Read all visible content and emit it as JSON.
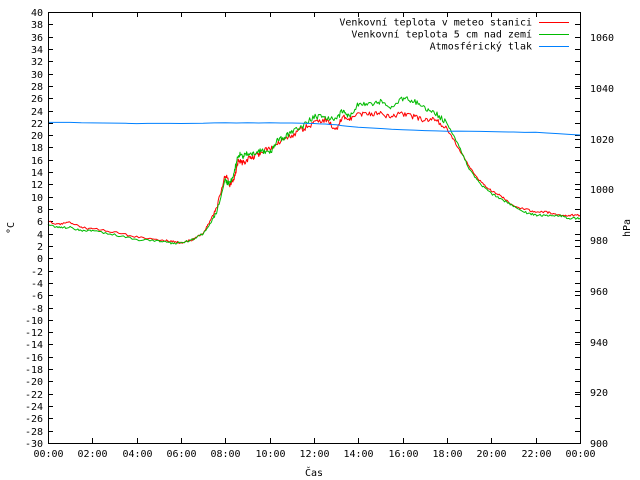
{
  "chart_data": {
    "type": "line",
    "xlabel": "Čas",
    "ylabel": "°C",
    "y2label": "hPa",
    "xticks": [
      "00:00",
      "02:00",
      "04:00",
      "06:00",
      "08:00",
      "10:00",
      "12:00",
      "14:00",
      "16:00",
      "18:00",
      "20:00",
      "22:00",
      "00:00"
    ],
    "xlim": [
      0,
      24
    ],
    "ylim": [
      -30,
      40
    ],
    "ytick_step": 2,
    "y2lim": [
      900,
      1070
    ],
    "y2ticks": [
      900,
      920,
      940,
      960,
      980,
      1000,
      1020,
      1040,
      1060
    ],
    "grid": false,
    "legend_position": "top-right",
    "series": [
      {
        "name": "Venkovní teplota v meteo stanici",
        "axis": "left",
        "color": "#ff0000",
        "x": [
          0,
          0.5,
          1,
          1.5,
          2,
          3,
          4,
          5,
          5.5,
          6,
          6.5,
          7,
          7.3,
          7.6,
          8,
          8.2,
          8.4,
          8.6,
          8.8,
          9,
          9.3,
          9.6,
          10,
          10.3,
          10.6,
          11,
          11.5,
          12,
          12.5,
          13,
          13.3,
          13.6,
          14,
          14.5,
          15,
          15.5,
          16,
          16.5,
          17,
          17.5,
          18,
          18.5,
          19,
          19.5,
          20,
          20.5,
          21,
          21.5,
          22,
          22.5,
          23,
          23.5,
          24
        ],
        "y": [
          6,
          5.5,
          5.8,
          5,
          4.8,
          4.2,
          3.5,
          3,
          2.8,
          2.5,
          3,
          4,
          6,
          8,
          13.5,
          12,
          13,
          16,
          15.5,
          16,
          16.5,
          17,
          18,
          18.5,
          19.5,
          20,
          21,
          22,
          22.5,
          21,
          23,
          22.5,
          23.5,
          23.5,
          23.5,
          23,
          23.5,
          23,
          22.5,
          22.5,
          21,
          18,
          15,
          12.5,
          11,
          10,
          8.5,
          8,
          7.5,
          7.5,
          7,
          7,
          7
        ]
      },
      {
        "name": "Venkovní teplota 5 cm nad zemí",
        "axis": "left",
        "color": "#00bb00",
        "x": [
          0,
          0.5,
          1,
          1.5,
          2,
          3,
          4,
          5,
          5.5,
          6,
          6.5,
          7,
          7.3,
          7.6,
          8,
          8.2,
          8.4,
          8.6,
          8.8,
          9,
          9.3,
          9.6,
          10,
          10.3,
          10.6,
          11,
          11.5,
          12,
          12.5,
          13,
          13.3,
          13.6,
          14,
          14.5,
          15,
          15.5,
          16,
          16.5,
          17,
          17.5,
          18,
          18.5,
          19,
          19.5,
          20,
          20.5,
          21,
          21.5,
          22,
          22.5,
          23,
          23.5,
          24
        ],
        "y": [
          5.5,
          5,
          5,
          4.5,
          4.5,
          3.8,
          3,
          2.8,
          2.5,
          2.5,
          3,
          4,
          5.5,
          7.5,
          12.5,
          12,
          14,
          17,
          16.5,
          17,
          17,
          17.5,
          17,
          19,
          19.5,
          20.5,
          21.5,
          23,
          23,
          22.5,
          24,
          23,
          25,
          25,
          25.5,
          24.5,
          26,
          25.5,
          24.5,
          23.5,
          22,
          18.5,
          14.5,
          12,
          10.5,
          9.5,
          8.5,
          7.5,
          7,
          7,
          7,
          6.5,
          6.5
        ]
      },
      {
        "name": "Atmosférický tlak",
        "axis": "right",
        "color": "#0080ff",
        "x": [
          0,
          2,
          4,
          6,
          8,
          10,
          12,
          13,
          14,
          16,
          18,
          20,
          22,
          24
        ],
        "y": [
          1026.5,
          1026.3,
          1026.0,
          1026.0,
          1026.3,
          1026.3,
          1026.0,
          1025.5,
          1024.5,
          1023.5,
          1023,
          1022.8,
          1022.5,
          1021.5
        ]
      }
    ]
  }
}
